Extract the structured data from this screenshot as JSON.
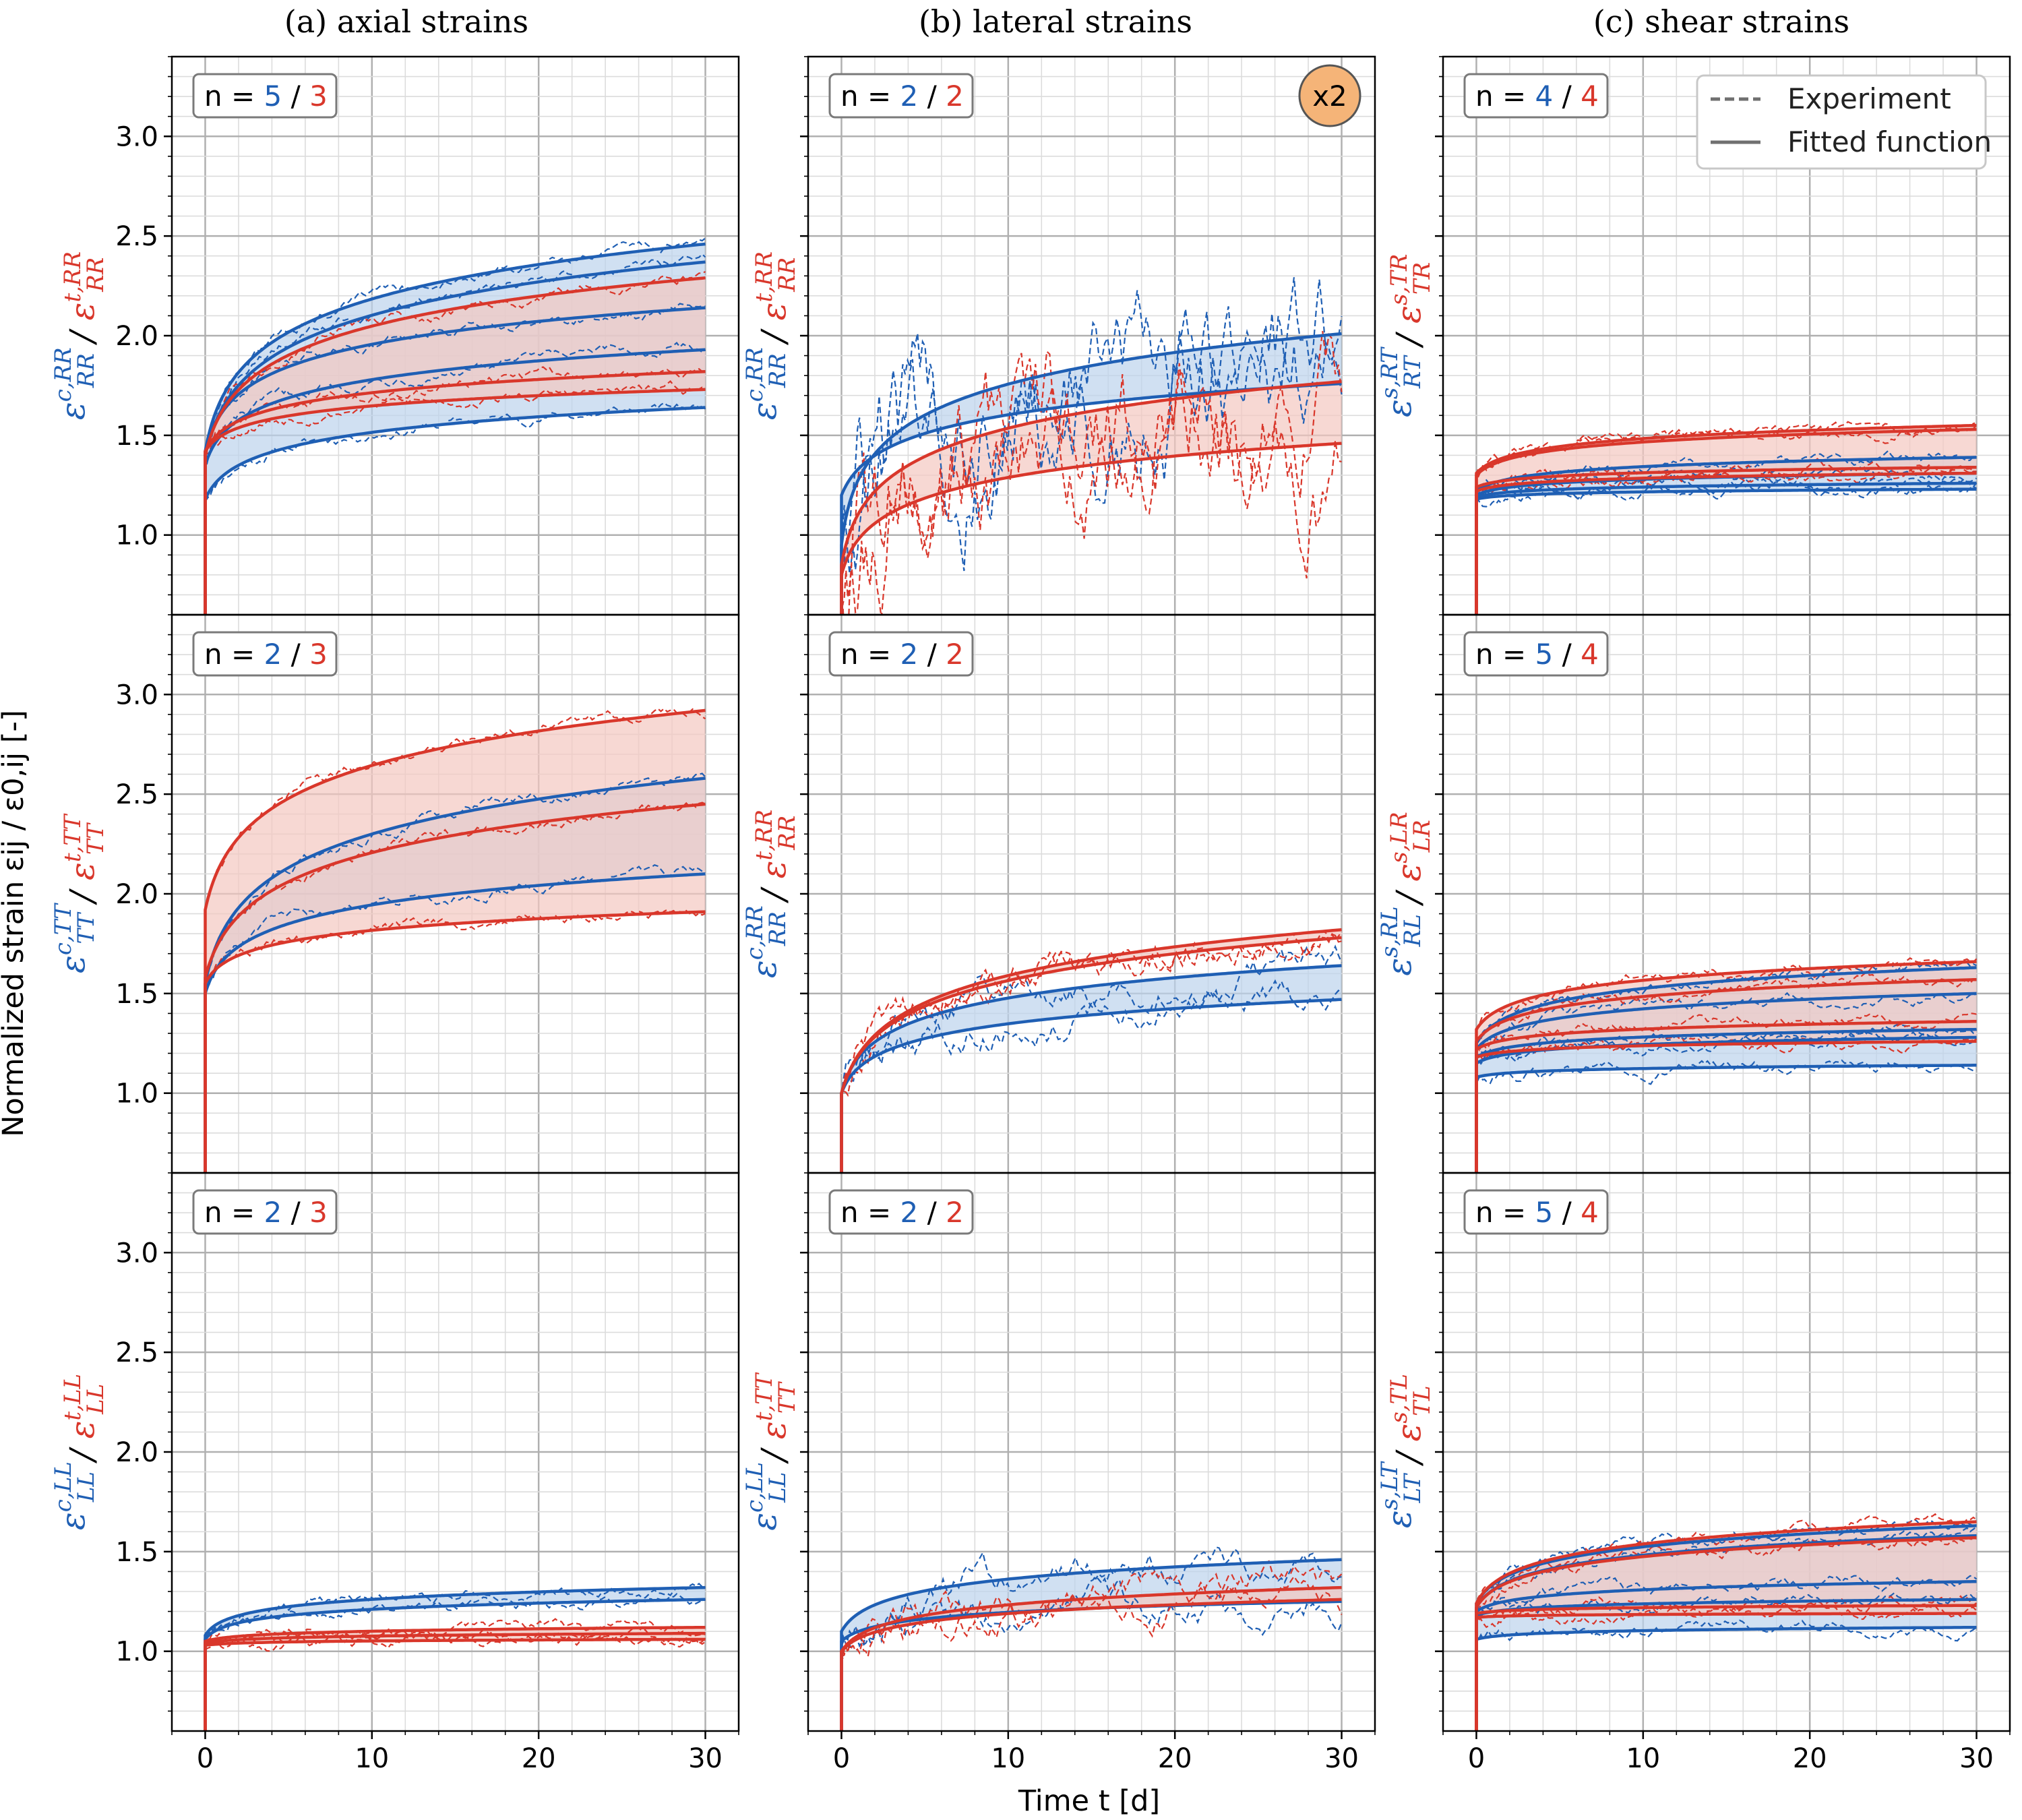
{
  "colors": {
    "compression": "#1f5fb4",
    "tension": "#d9372b",
    "fill_c": "#bcd3ec",
    "fill_t": "#f3c7c1",
    "grid_major": "#b0b0b0",
    "grid_minor": "#dcdcdc",
    "badge": "#f5b478"
  },
  "figure": {
    "xlabel": "Time t [d]",
    "ylabel": "Normalized strain εij / ε0,ij [-]",
    "column_titles": [
      "(a)  axial strains",
      "(b)  lateral strains",
      "(c)  shear strains"
    ],
    "legend": {
      "dashed": "Experiment",
      "solid": "Fitted function"
    },
    "badge": "x2",
    "slash": "/"
  },
  "chart_data": {
    "type": "line",
    "x": {
      "label": "Time t [d]",
      "range": [
        -2,
        32
      ],
      "ticks": [
        0,
        10,
        20,
        30
      ],
      "tick_labels": [
        "0",
        "10",
        "20",
        "30"
      ]
    },
    "y": {
      "range": [
        0.6,
        3.4
      ],
      "ticks": [
        1.0,
        1.5,
        2.0,
        2.5,
        3.0
      ],
      "tick_labels": [
        "1.0",
        "1.5",
        "2.0",
        "2.5",
        "3.0"
      ]
    },
    "panels": [
      {
        "id": "a1",
        "y_label": "εc,RR / εt,RR",
        "n_blue": "5",
        "n_red": "3",
        "blue": [
          {
            "start": 1.18,
            "end": 1.64,
            "k": 1.6
          },
          {
            "start": 1.35,
            "end": 1.93,
            "k": 2.0
          },
          {
            "start": 1.4,
            "end": 2.14,
            "k": 2.5
          },
          {
            "start": 1.4,
            "end": 2.37,
            "k": 1.5
          },
          {
            "start": 1.42,
            "end": 2.46,
            "k": 1.8
          }
        ],
        "red": [
          {
            "start": 1.42,
            "end": 1.73,
            "k": 1.8
          },
          {
            "start": 1.42,
            "end": 1.82,
            "k": 1.8
          },
          {
            "start": 1.4,
            "end": 2.29,
            "k": 1.6
          }
        ]
      },
      {
        "id": "b1",
        "y_label": "εc,RR / εt,RR",
        "n_blue": "2",
        "n_red": "2",
        "blue": [
          {
            "start": 0.95,
            "end": 2.01,
            "k": 3.0
          },
          {
            "start": 1.2,
            "end": 1.76,
            "k": 1.4
          }
        ],
        "red": [
          {
            "start": 0.8,
            "end": 1.46,
            "k": 2.0
          },
          {
            "start": 0.85,
            "end": 1.77,
            "k": 2.2
          }
        ]
      },
      {
        "id": "c1",
        "y_label": "εs,RT / εs,TR",
        "n_blue": "4",
        "n_red": "4",
        "blue": [
          {
            "start": 1.18,
            "end": 1.23,
            "k": 1.5
          },
          {
            "start": 1.19,
            "end": 1.26,
            "k": 1.5
          },
          {
            "start": 1.2,
            "end": 1.31,
            "k": 1.5
          },
          {
            "start": 1.22,
            "end": 1.39,
            "k": 1.5
          }
        ],
        "red": [
          {
            "start": 1.22,
            "end": 1.31,
            "k": 1.5
          },
          {
            "start": 1.24,
            "end": 1.34,
            "k": 1.5
          },
          {
            "start": 1.3,
            "end": 1.53,
            "k": 1.5
          },
          {
            "start": 1.31,
            "end": 1.55,
            "k": 1.5
          }
        ]
      },
      {
        "id": "a2",
        "y_label": "εc,TT / εt,TT",
        "n_blue": "2",
        "n_red": "3",
        "blue": [
          {
            "start": 1.5,
            "end": 2.1,
            "k": 2.0
          },
          {
            "start": 1.55,
            "end": 2.58,
            "k": 1.6
          }
        ],
        "red": [
          {
            "start": 1.55,
            "end": 1.91,
            "k": 2.0
          },
          {
            "start": 1.58,
            "end": 2.45,
            "k": 1.4
          },
          {
            "start": 1.92,
            "end": 2.92,
            "k": 1.5
          }
        ]
      },
      {
        "id": "b2",
        "y_label": "εc,RR / εt,RR",
        "n_blue": "2",
        "n_red": "2",
        "blue": [
          {
            "start": 1.0,
            "end": 1.47,
            "k": 2.0
          },
          {
            "start": 1.0,
            "end": 1.64,
            "k": 2.2
          }
        ],
        "red": [
          {
            "start": 1.0,
            "end": 1.78,
            "k": 1.5
          },
          {
            "start": 1.0,
            "end": 1.82,
            "k": 1.4
          }
        ]
      },
      {
        "id": "c2",
        "y_label": "εs,RL / εs,LR",
        "n_blue": "5",
        "n_red": "4",
        "blue": [
          {
            "start": 1.08,
            "end": 1.14,
            "k": 1.5
          },
          {
            "start": 1.15,
            "end": 1.28,
            "k": 1.5
          },
          {
            "start": 1.18,
            "end": 1.32,
            "k": 1.5
          },
          {
            "start": 1.22,
            "end": 1.5,
            "k": 1.5
          },
          {
            "start": 1.25,
            "end": 1.63,
            "k": 1.5
          }
        ],
        "red": [
          {
            "start": 1.18,
            "end": 1.26,
            "k": 1.5
          },
          {
            "start": 1.22,
            "end": 1.36,
            "k": 1.5
          },
          {
            "start": 1.26,
            "end": 1.57,
            "k": 1.5
          },
          {
            "start": 1.32,
            "end": 1.66,
            "k": 1.5
          }
        ]
      },
      {
        "id": "a3",
        "y_label": "εc,LL / εt,LL",
        "n_blue": "2",
        "n_red": "3",
        "blue": [
          {
            "start": 1.06,
            "end": 1.26,
            "k": 2.5
          },
          {
            "start": 1.08,
            "end": 1.32,
            "k": 2.5
          }
        ],
        "red": [
          {
            "start": 1.03,
            "end": 1.06,
            "k": 1.5
          },
          {
            "start": 1.04,
            "end": 1.09,
            "k": 1.5
          },
          {
            "start": 1.05,
            "end": 1.12,
            "k": 1.5
          }
        ]
      },
      {
        "id": "b3",
        "y_label": "εc,LL / εt,TT",
        "n_blue": "2",
        "n_red": "2",
        "blue": [
          {
            "start": 1.05,
            "end": 1.25,
            "k": 1.6
          },
          {
            "start": 1.1,
            "end": 1.46,
            "k": 1.6
          }
        ],
        "red": [
          {
            "start": 1.0,
            "end": 1.26,
            "k": 1.6
          },
          {
            "start": 1.0,
            "end": 1.32,
            "k": 1.6
          }
        ]
      },
      {
        "id": "c3",
        "y_label": "εs,LT / εs,TL",
        "n_blue": "5",
        "n_red": "4",
        "blue": [
          {
            "start": 1.06,
            "end": 1.12,
            "k": 1.5
          },
          {
            "start": 1.18,
            "end": 1.26,
            "k": 1.5
          },
          {
            "start": 1.2,
            "end": 1.35,
            "k": 1.5
          },
          {
            "start": 1.22,
            "end": 1.58,
            "k": 1.6
          },
          {
            "start": 1.24,
            "end": 1.63,
            "k": 1.6
          }
        ],
        "red": [
          {
            "start": 1.17,
            "end": 1.19,
            "k": 1.5
          },
          {
            "start": 1.19,
            "end": 1.23,
            "k": 1.5
          },
          {
            "start": 1.22,
            "end": 1.57,
            "k": 1.6
          },
          {
            "start": 1.24,
            "end": 1.65,
            "k": 1.6
          }
        ]
      }
    ]
  }
}
